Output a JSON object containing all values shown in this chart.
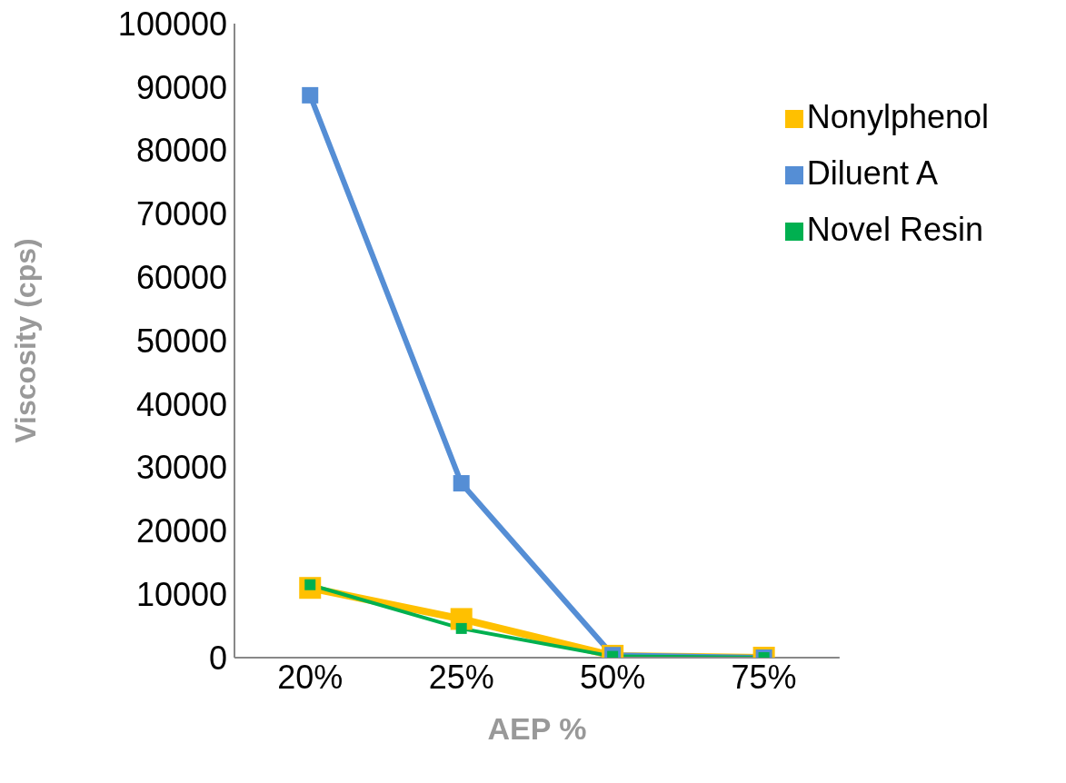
{
  "chart_data": {
    "type": "line",
    "xlabel": "AEP %",
    "ylabel": "Viscosity (cps)",
    "categories": [
      "20%",
      "25%",
      "50%",
      "75%"
    ],
    "series": [
      {
        "name": "Nonylphenol",
        "color": "#ffc000",
        "values": [
          11000,
          6100,
          300,
          0
        ]
      },
      {
        "name": "Diluent A",
        "color": "#558ed5",
        "values": [
          88700,
          27500,
          400,
          0
        ]
      },
      {
        "name": "Novel Resin",
        "color": "#00b050",
        "values": [
          11500,
          4600,
          200,
          0
        ]
      }
    ],
    "ylim": [
      0,
      100000
    ],
    "yticks": [
      0,
      10000,
      20000,
      30000,
      40000,
      50000,
      60000,
      70000,
      80000,
      90000,
      100000
    ],
    "grid": false,
    "legend": "top right",
    "marker": "square",
    "line_style": "solid"
  }
}
